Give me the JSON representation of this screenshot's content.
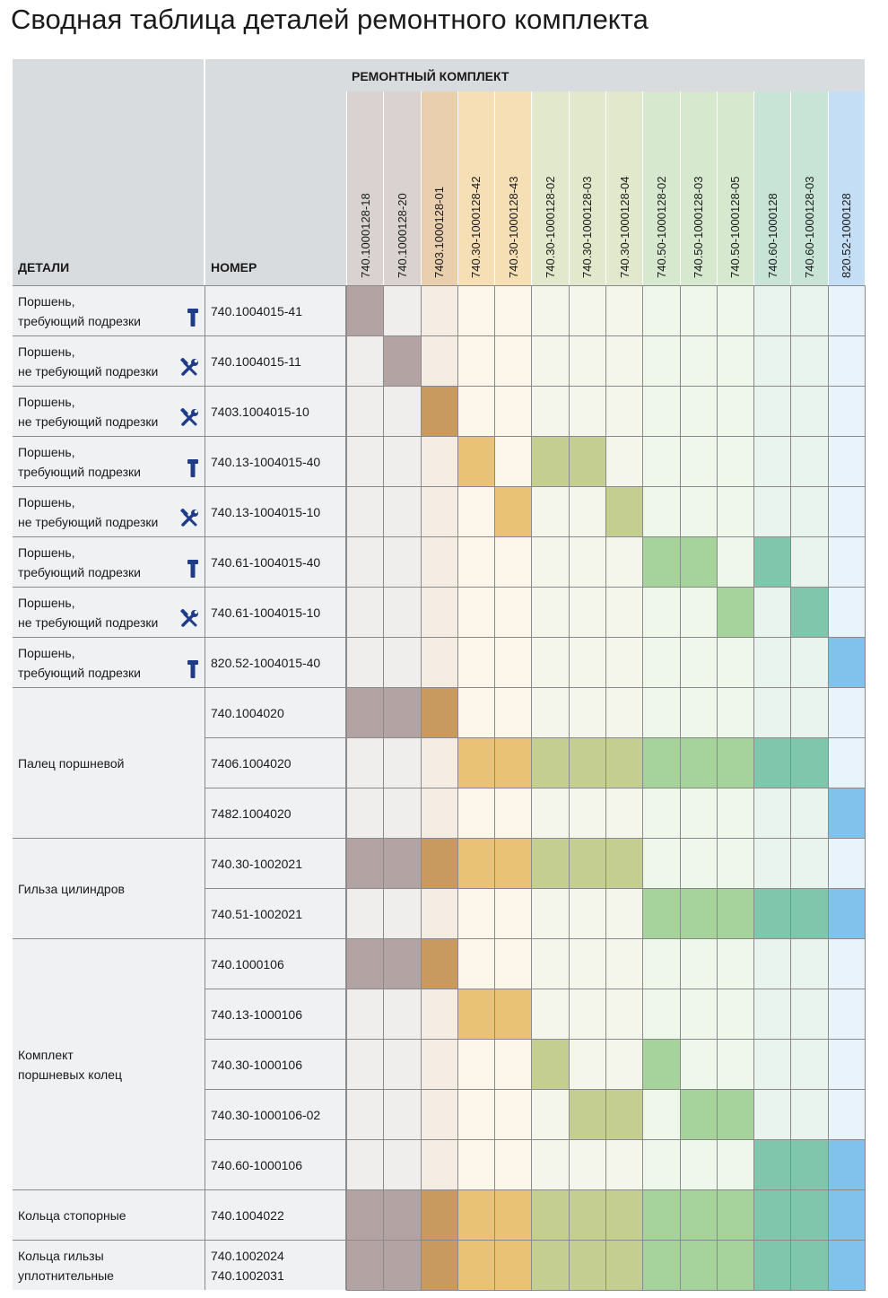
{
  "title": "Сводная таблица деталей ремонтного комплекта",
  "header": {
    "parts": "ДЕТАЛИ",
    "number": "НОМЕР",
    "kit": "РЕМОНТНЫЙ КОМПЛЕКТ"
  },
  "kits": [
    {
      "label": "740.1000128-18",
      "header_color": "#d9d2d1",
      "empty_color": "#efeeec",
      "filled_color": "#b3a3a2"
    },
    {
      "label": "740.1000128-20",
      "header_color": "#d9d2d1",
      "empty_color": "#efeeec",
      "filled_color": "#b3a3a2"
    },
    {
      "label": "7403.1000128-01",
      "header_color": "#e9cfae",
      "empty_color": "#f5ede3",
      "filled_color": "#c99a60"
    },
    {
      "label": "740.30-1000128-42",
      "header_color": "#f6dfb4",
      "empty_color": "#fdf6ea",
      "filled_color": "#e9c275"
    },
    {
      "label": "740.30-1000128-43",
      "header_color": "#f6dfb4",
      "empty_color": "#fdf6ea",
      "filled_color": "#e9c275"
    },
    {
      "label": "740.30-1000128-02",
      "header_color": "#e2e8cb",
      "empty_color": "#f4f6ec",
      "filled_color": "#c4ce90"
    },
    {
      "label": "740.30-1000128-03",
      "header_color": "#e2e8cb",
      "empty_color": "#f4f6ec",
      "filled_color": "#c4ce90"
    },
    {
      "label": "740.30-1000128-04",
      "header_color": "#e2e8cb",
      "empty_color": "#f4f6ec",
      "filled_color": "#c4ce90"
    },
    {
      "label": "740.50-1000128-02",
      "header_color": "#d6e8ce",
      "empty_color": "#eff7ec",
      "filled_color": "#a6d39b"
    },
    {
      "label": "740.50-1000128-03",
      "header_color": "#d6e8ce",
      "empty_color": "#eff7ec",
      "filled_color": "#a6d39b"
    },
    {
      "label": "740.50-1000128-05",
      "header_color": "#d6e8ce",
      "empty_color": "#eff7ec",
      "filled_color": "#a6d39b"
    },
    {
      "label": "740.60-1000128",
      "header_color": "#c7e4d7",
      "empty_color": "#eaf4ef",
      "filled_color": "#7fc6ac"
    },
    {
      "label": "740.60-1000128-03",
      "header_color": "#c7e4d7",
      "empty_color": "#eaf4ef",
      "filled_color": "#7fc6ac"
    },
    {
      "label": "820.52-1000128",
      "header_color": "#c3def5",
      "empty_color": "#e8f3fc",
      "filled_color": "#80c2ec"
    }
  ],
  "parts": [
    {
      "label": [
        "Поршень,",
        "требующий подрезки"
      ],
      "rows": [
        {
          "numbers": [
            "740.1004015-41"
          ],
          "kits": [
            1,
            0,
            0,
            0,
            0,
            0,
            0,
            0,
            0,
            0,
            0,
            0,
            0,
            0
          ]
        }
      ]
    },
    {
      "label": [
        "Поршень,",
        "не требующий подрезки"
      ],
      "rows": [
        {
          "numbers": [
            "740.1004015-11"
          ],
          "kits": [
            0,
            1,
            0,
            0,
            0,
            0,
            0,
            0,
            0,
            0,
            0,
            0,
            0,
            0
          ]
        }
      ]
    },
    {
      "label": [
        "Поршень,",
        "не требующий подрезки"
      ],
      "rows": [
        {
          "numbers": [
            "7403.1004015-10"
          ],
          "kits": [
            0,
            0,
            1,
            0,
            0,
            0,
            0,
            0,
            0,
            0,
            0,
            0,
            0,
            0
          ]
        }
      ]
    },
    {
      "label": [
        "Поршень,",
        "требующий подрезки"
      ],
      "rows": [
        {
          "numbers": [
            "740.13-1004015-40"
          ],
          "kits": [
            0,
            0,
            0,
            1,
            0,
            1,
            1,
            0,
            0,
            0,
            0,
            0,
            0,
            0
          ]
        }
      ]
    },
    {
      "label": [
        "Поршень,",
        "не требующий подрезки"
      ],
      "rows": [
        {
          "numbers": [
            "740.13-1004015-10"
          ],
          "kits": [
            0,
            0,
            0,
            0,
            1,
            0,
            0,
            1,
            0,
            0,
            0,
            0,
            0,
            0
          ]
        }
      ]
    },
    {
      "label": [
        "Поршень,",
        "требующий подрезки"
      ],
      "rows": [
        {
          "numbers": [
            "740.61-1004015-40"
          ],
          "kits": [
            0,
            0,
            0,
            0,
            0,
            0,
            0,
            0,
            1,
            1,
            0,
            1,
            0,
            0
          ]
        }
      ]
    },
    {
      "label": [
        "Поршень,",
        "не требующий подрезки"
      ],
      "rows": [
        {
          "numbers": [
            "740.61-1004015-10"
          ],
          "kits": [
            0,
            0,
            0,
            0,
            0,
            0,
            0,
            0,
            0,
            0,
            1,
            0,
            1,
            0
          ]
        }
      ]
    },
    {
      "label": [
        "Поршень,",
        "требующий подрезки"
      ],
      "rows": [
        {
          "numbers": [
            "820.52-1004015-40"
          ],
          "kits": [
            0,
            0,
            0,
            0,
            0,
            0,
            0,
            0,
            0,
            0,
            0,
            0,
            0,
            1
          ]
        }
      ]
    },
    {
      "label": [
        "Палец поршневой"
      ],
      "rows": [
        {
          "numbers": [
            "740.1004020"
          ],
          "kits": [
            1,
            1,
            1,
            0,
            0,
            0,
            0,
            0,
            0,
            0,
            0,
            0,
            0,
            0
          ]
        },
        {
          "numbers": [
            "7406.1004020"
          ],
          "kits": [
            0,
            0,
            0,
            1,
            1,
            1,
            1,
            1,
            1,
            1,
            1,
            1,
            1,
            0
          ]
        },
        {
          "numbers": [
            "7482.1004020"
          ],
          "kits": [
            0,
            0,
            0,
            0,
            0,
            0,
            0,
            0,
            0,
            0,
            0,
            0,
            0,
            1
          ]
        }
      ]
    },
    {
      "label": [
        "Гильза цилиндров"
      ],
      "rows": [
        {
          "numbers": [
            "740.30-1002021"
          ],
          "kits": [
            1,
            1,
            1,
            1,
            1,
            1,
            1,
            1,
            0,
            0,
            0,
            0,
            0,
            0
          ]
        },
        {
          "numbers": [
            "740.51-1002021"
          ],
          "kits": [
            0,
            0,
            0,
            0,
            0,
            0,
            0,
            0,
            1,
            1,
            1,
            1,
            1,
            1
          ]
        }
      ]
    },
    {
      "label": [
        "Комплект",
        "поршневых колец"
      ],
      "rows": [
        {
          "numbers": [
            "740.1000106"
          ],
          "kits": [
            1,
            1,
            1,
            0,
            0,
            0,
            0,
            0,
            0,
            0,
            0,
            0,
            0,
            0
          ]
        },
        {
          "numbers": [
            "740.13-1000106"
          ],
          "kits": [
            0,
            0,
            0,
            1,
            1,
            0,
            0,
            0,
            0,
            0,
            0,
            0,
            0,
            0
          ]
        },
        {
          "numbers": [
            "740.30-1000106"
          ],
          "kits": [
            0,
            0,
            0,
            0,
            0,
            1,
            0,
            0,
            1,
            0,
            0,
            0,
            0,
            0
          ]
        },
        {
          "numbers": [
            "740.30-1000106-02"
          ],
          "kits": [
            0,
            0,
            0,
            0,
            0,
            0,
            1,
            1,
            0,
            1,
            1,
            0,
            0,
            0
          ]
        },
        {
          "numbers": [
            "740.60-1000106"
          ],
          "kits": [
            0,
            0,
            0,
            0,
            0,
            0,
            0,
            0,
            0,
            0,
            0,
            1,
            1,
            1
          ]
        }
      ]
    },
    {
      "label": [
        "Кольца стопорные"
      ],
      "rows": [
        {
          "numbers": [
            "740.1004022"
          ],
          "kits": [
            1,
            1,
            1,
            1,
            1,
            1,
            1,
            1,
            1,
            1,
            1,
            1,
            1,
            1
          ]
        }
      ]
    },
    {
      "label": [
        "Кольца гильзы",
        "уплотнительные"
      ],
      "rows": [
        {
          "numbers": [
            "740.1002024",
            "740.1002031"
          ],
          "kits": [
            1,
            1,
            1,
            1,
            1,
            1,
            1,
            1,
            1,
            1,
            1,
            1,
            1,
            1
          ]
        }
      ]
    }
  ]
}
